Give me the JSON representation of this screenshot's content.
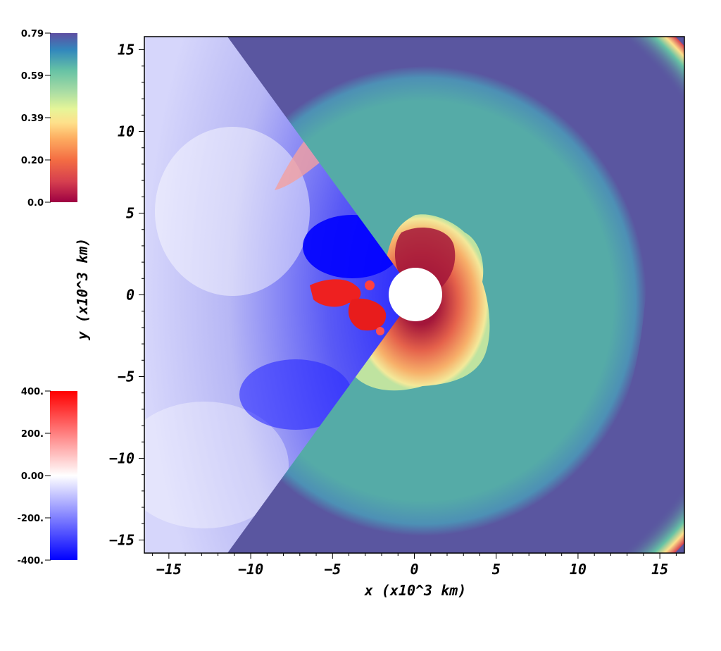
{
  "plot": {
    "xlabel": "x (x10^3 km)",
    "ylabel": "y (x10^3 km)",
    "xlim": [
      -16.5,
      16.5
    ],
    "ylim": [
      -15.8,
      15.8
    ],
    "xticks": [
      "−15",
      "−10",
      "−5",
      "0",
      "5",
      "10",
      "15"
    ],
    "yticks": [
      "15",
      "10",
      "5",
      "0",
      "−5",
      "−10",
      "−15"
    ]
  },
  "colorbar_top": {
    "labels": [
      "0.79",
      "0.59",
      "0.39",
      "0.20",
      "0.0"
    ],
    "colormap": "spectral"
  },
  "colorbar_bottom": {
    "labels": [
      "400.",
      "200.",
      "0.00",
      "-200.",
      "-400."
    ],
    "colormap": "blue-white-red"
  },
  "colors": {
    "outer": "#5a56a0",
    "shell": "#55aba7",
    "edge_blue": "#4a7cc0",
    "hot_red": "#a3163a",
    "warm_orange": "#f0a060",
    "bwr_red": "#ff0000",
    "bwr_blue": "#0000ff"
  }
}
